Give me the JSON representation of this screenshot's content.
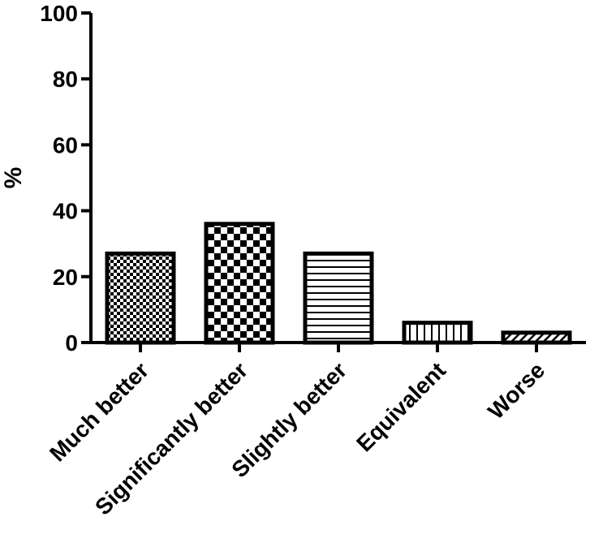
{
  "chart_data": {
    "type": "bar",
    "title": "",
    "xlabel": "",
    "ylabel": "%",
    "ylim": [
      0,
      100
    ],
    "yticks": [
      0,
      20,
      40,
      60,
      80,
      100
    ],
    "categories": [
      "Much better",
      "Significantly better",
      "Slightly better",
      "Equivalent",
      "Worse"
    ],
    "values": [
      27,
      36,
      27,
      6,
      3
    ],
    "patterns": [
      "fine-checkerboard",
      "coarse-checkerboard",
      "horizontal-lines",
      "vertical-lines",
      "diagonal-lines"
    ],
    "grid": false,
    "legend": "none",
    "colors": {
      "ink": "#000000",
      "background": "#ffffff"
    }
  }
}
